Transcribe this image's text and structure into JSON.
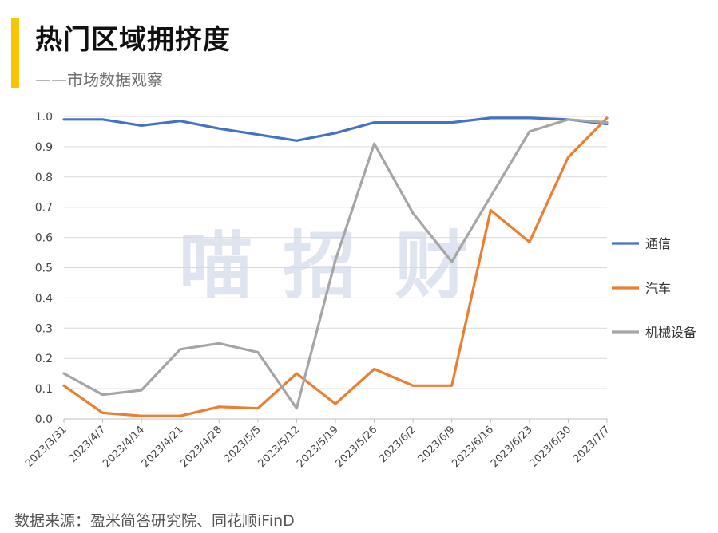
{
  "header": {
    "title": "热门区域拥挤度",
    "subtitle": "——市场数据观察",
    "accent_color": "#f7c600"
  },
  "watermark": {
    "chars": [
      "喵",
      "招",
      "财"
    ]
  },
  "footer": {
    "source": "数据来源：盈米简答研究院、同花顺iFinD"
  },
  "chart_data": {
    "type": "line",
    "categories": [
      "2023/3/31",
      "2023/4/7",
      "2023/4/14",
      "2023/4/21",
      "2023/4/28",
      "2023/5/5",
      "2023/5/12",
      "2023/5/19",
      "2023/5/26",
      "2023/6/2",
      "2023/6/9",
      "2023/6/16",
      "2023/6/23",
      "2023/6/30",
      "2023/7/7"
    ],
    "ylim": [
      0,
      1.0
    ],
    "yticks": [
      "0.0",
      "0.1",
      "0.2",
      "0.3",
      "0.4",
      "0.5",
      "0.6",
      "0.7",
      "0.8",
      "0.9",
      "1.0"
    ],
    "grid": true,
    "legend_position": "right",
    "series": [
      {
        "name": "通信",
        "color": "#4472c4",
        "values": [
          0.99,
          0.99,
          0.97,
          0.985,
          0.96,
          0.94,
          0.92,
          0.945,
          0.98,
          0.98,
          0.98,
          0.995,
          0.995,
          0.99,
          0.975
        ]
      },
      {
        "name": "汽车",
        "color": "#ed7d31",
        "values": [
          0.11,
          0.02,
          0.01,
          0.01,
          0.04,
          0.035,
          0.15,
          0.05,
          0.165,
          0.11,
          0.11,
          0.69,
          0.585,
          0.865,
          0.995
        ]
      },
      {
        "name": "机械设备",
        "color": "#a5a5a5",
        "values": [
          0.15,
          0.08,
          0.095,
          0.23,
          0.25,
          0.22,
          0.035,
          0.525,
          0.91,
          0.68,
          0.52,
          0.735,
          0.95,
          0.99,
          0.98
        ]
      }
    ]
  }
}
